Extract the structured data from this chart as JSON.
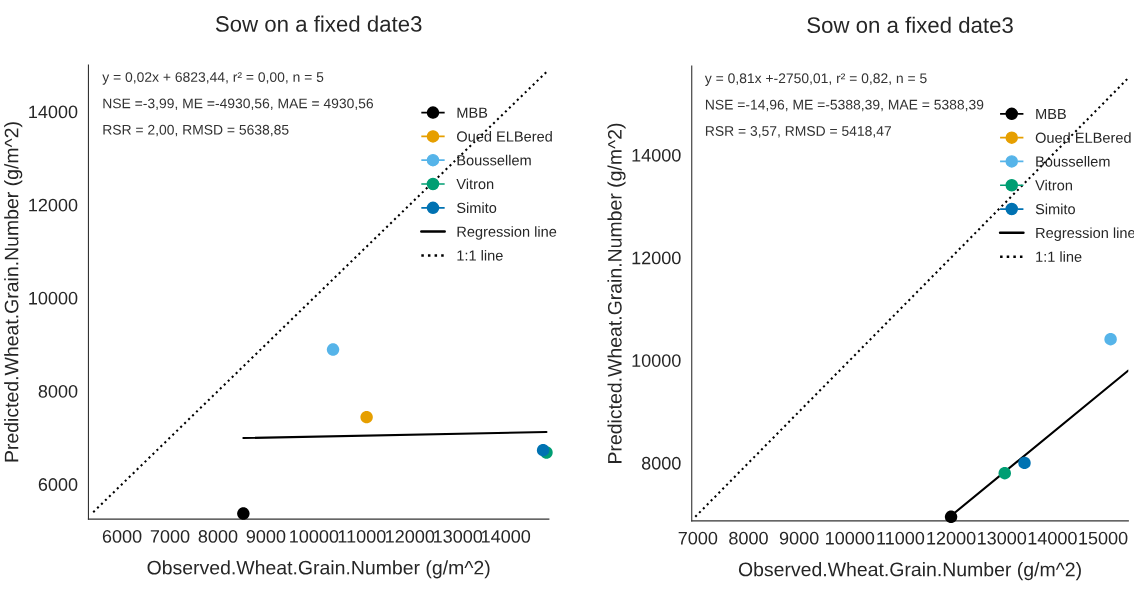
{
  "chart_data": [
    {
      "type": "scatter",
      "title": "Sow on a fixed date3",
      "xlabel": "Observed.Wheat.Grain.Number (g/m^2)",
      "ylabel": "Predicted.Wheat.Grain.Number (g/m^2)",
      "xlim": [
        5300,
        14900
      ],
      "ylim": [
        5250,
        15000
      ],
      "xticks": [
        6000,
        7000,
        8000,
        9000,
        10000,
        11000,
        12000,
        13000,
        14000
      ],
      "yticks": [
        6000,
        8000,
        10000,
        12000,
        14000
      ],
      "grid": false,
      "legend": "top right",
      "marker": "circle",
      "annotations": [
        "y = 0,02x + 6823,44, r² = 0,00, n = 5",
        "NSE =-3,99, ME =-4930,56, MAE = 4930,56",
        "RSR = 2,00, RMSD = 5638,85"
      ],
      "series": [
        {
          "name": "MBB",
          "color": "#000000",
          "x": [
            8530
          ],
          "values": [
            5370
          ]
        },
        {
          "name": "Oued ELBered",
          "color": "#e69f00",
          "x": [
            11100
          ],
          "values": [
            7440
          ]
        },
        {
          "name": "Boussellem",
          "color": "#56b4e9",
          "x": [
            10400
          ],
          "values": [
            8890
          ]
        },
        {
          "name": "Vitron",
          "color": "#009e73",
          "x": [
            14850
          ],
          "values": [
            6680
          ]
        },
        {
          "name": "Simito",
          "color": "#0072b2",
          "x": [
            14780
          ],
          "values": [
            6730
          ]
        },
        {
          "name": "Regression line",
          "type": "line",
          "color": "#000000",
          "line_style": "solid",
          "marker": "none",
          "x": [
            8530,
            14850
          ],
          "values": [
            6990,
            7120
          ]
        },
        {
          "name": "1:1 line",
          "type": "line",
          "color": "#000000",
          "line_style": "dotted",
          "marker": "none",
          "x": [
            5400,
            14850
          ],
          "values": [
            5400,
            14850
          ]
        }
      ]
    },
    {
      "type": "scatter",
      "title": "Sow on a fixed date3",
      "xlabel": "Observed.Wheat.Grain.Number (g/m^2)",
      "ylabel": "Predicted.Wheat.Grain.Number (g/m^2)",
      "xlim": [
        6880,
        15500
      ],
      "ylim": [
        6870,
        15730
      ],
      "xticks": [
        7000,
        8000,
        9000,
        10000,
        11000,
        12000,
        13000,
        14000,
        15000
      ],
      "yticks": [
        8000,
        10000,
        12000,
        14000
      ],
      "grid": false,
      "legend": "top right",
      "marker": "circle",
      "annotations": [
        "y = 0,81x +-2750,01, r² = 0,82, n = 5",
        "NSE =-14,96, ME =-5388,39, MAE = 5388,39",
        "RSR = 3,57, RMSD = 5418,47"
      ],
      "series": [
        {
          "name": "MBB",
          "color": "#000000",
          "x": [
            12000
          ],
          "values": [
            6950
          ]
        },
        {
          "name": "Oued ELBered",
          "color": "#e69f00",
          "x": [
            null
          ],
          "values": [
            null
          ]
        },
        {
          "name": "Boussellem",
          "color": "#56b4e9",
          "x": [
            15150
          ],
          "values": [
            10410
          ]
        },
        {
          "name": "Vitron",
          "color": "#009e73",
          "x": [
            13060
          ],
          "values": [
            7800
          ]
        },
        {
          "name": "Simito",
          "color": "#0072b2",
          "x": [
            13450
          ],
          "values": [
            8000
          ]
        },
        {
          "name": "Regression line",
          "type": "line",
          "color": "#000000",
          "line_style": "solid",
          "marker": "none",
          "x": [
            12000,
            15500
          ],
          "values": [
            6970,
            9800
          ]
        },
        {
          "name": "1:1 line",
          "type": "line",
          "color": "#000000",
          "line_style": "dotted",
          "marker": "none",
          "x": [
            6950,
            15500
          ],
          "values": [
            6950,
            15500
          ]
        }
      ]
    }
  ]
}
